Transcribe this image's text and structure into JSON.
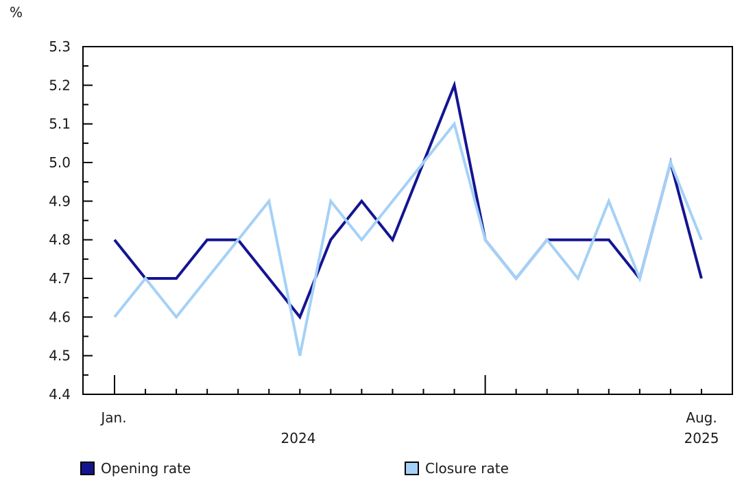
{
  "chart_data": {
    "type": "line",
    "title": "",
    "ylabel": "%",
    "xlabel": "",
    "grid": false,
    "legend_position": "bottom",
    "ylim": [
      4.4,
      5.3
    ],
    "ytick_step": 0.1,
    "yticks": [
      "5.3",
      "5.2",
      "5.1",
      "5.0",
      "4.9",
      "4.8",
      "4.7",
      "4.6",
      "4.5",
      "4.4"
    ],
    "x_axis": {
      "start_label": "Jan.",
      "start_year_label": "2024",
      "end_label": "Aug.",
      "end_year_label": "2025",
      "major_tick_months": [
        "2024-01",
        "2025-01"
      ]
    },
    "x": [
      "2024-01",
      "2024-02",
      "2024-03",
      "2024-04",
      "2024-05",
      "2024-06",
      "2024-07",
      "2024-08",
      "2024-09",
      "2024-10",
      "2024-11",
      "2024-12",
      "2025-01",
      "2025-02",
      "2025-03",
      "2025-04",
      "2025-05",
      "2025-06",
      "2025-07",
      "2025-08"
    ],
    "series": [
      {
        "name": "Opening rate",
        "color": "#141492",
        "values": [
          4.8,
          4.7,
          4.7,
          4.8,
          4.8,
          4.7,
          4.6,
          4.8,
          4.9,
          4.8,
          5.0,
          5.2,
          4.8,
          4.7,
          4.8,
          4.8,
          4.8,
          4.7,
          5.0,
          4.7
        ]
      },
      {
        "name": "Closure rate",
        "color": "#a4d1f7",
        "values": [
          4.6,
          4.7,
          4.6,
          4.7,
          4.8,
          4.9,
          4.5,
          4.9,
          4.8,
          4.9,
          5.0,
          5.1,
          4.8,
          4.7,
          4.8,
          4.7,
          4.9,
          4.7,
          5.0,
          4.8
        ]
      }
    ],
    "axis_color": "#000000",
    "text_color": "#1a1a1a"
  }
}
